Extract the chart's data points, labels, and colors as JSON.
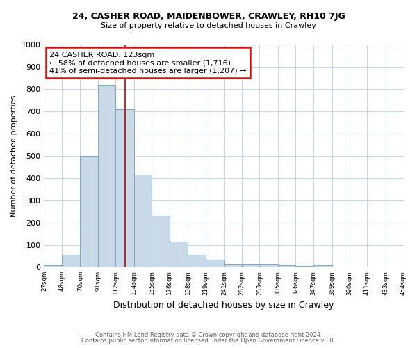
{
  "title": "24, CASHER ROAD, MAIDENBOWER, CRAWLEY, RH10 7JG",
  "subtitle": "Size of property relative to detached houses in Crawley",
  "xlabel": "Distribution of detached houses by size in Crawley",
  "ylabel": "Number of detached properties",
  "footnote1": "Contains HM Land Registry data © Crown copyright and database right 2024.",
  "footnote2": "Contains public sector information licensed under the Open Government Licence v3.0.",
  "annotation_line1": "24 CASHER ROAD: 123sqm",
  "annotation_line2": "← 58% of detached houses are smaller (1,716)",
  "annotation_line3": "41% of semi-detached houses are larger (1,207) →",
  "bar_edges": [
    27,
    48,
    70,
    91,
    112,
    134,
    155,
    176,
    198,
    219,
    241,
    262,
    283,
    305,
    326,
    347,
    369,
    390,
    411,
    433,
    454
  ],
  "bar_heights": [
    8,
    57,
    500,
    820,
    710,
    415,
    230,
    115,
    55,
    33,
    13,
    13,
    12,
    8,
    5,
    8,
    0,
    0,
    0,
    0
  ],
  "bar_color": "#c9d9e8",
  "bar_edgecolor": "#7aaac8",
  "subject_line_color": "#cc0000",
  "subject_line_x": 123,
  "ylim": [
    0,
    1000
  ],
  "xlim": [
    27,
    454
  ],
  "background_color": "#ffffff",
  "grid_color": "#c8d8e8",
  "yticks": [
    0,
    100,
    200,
    300,
    400,
    500,
    600,
    700,
    800,
    900,
    1000
  ]
}
